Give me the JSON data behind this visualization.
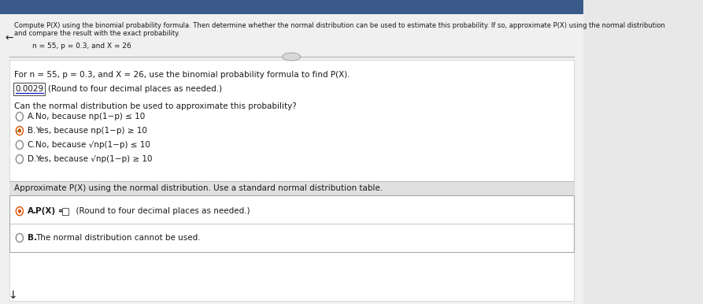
{
  "bg_color": "#e8e8e8",
  "header_bg": "#3a5a8a",
  "content_bg": "#f0f0f0",
  "white": "#ffffff",
  "title_line1": "Compute P(X) using the binomial probability formula. Then determine whether the normal distribution can be used to estimate this probability. If so, approximate P(X) using the normal distribution",
  "title_line2": "and compare the result with the exact probability.",
  "params_line": "n = 55, p = 0.3, and X = 26",
  "question1": "For n = 55, p = 0.3, and X = 26, use the binomial probability formula to find P(X).",
  "answer_box_value": "0.0029",
  "answer_box_note": "(Round to four decimal places as needed.)",
  "question2": "Can the normal distribution be used to approximate this probability?",
  "options": [
    {
      "label": "A.",
      "text": "No, because np(1−p) ≤ 10",
      "selected": false
    },
    {
      "label": "B.",
      "text": "Yes, because np(1−p) ≥ 10",
      "selected": true
    },
    {
      "label": "C.",
      "text": "No, because √np(1−p) ≤ 10",
      "selected": false
    },
    {
      "label": "D.",
      "text": "Yes, because √np(1−p) ≥ 10",
      "selected": false
    }
  ],
  "question3": "Approximate P(X) using the normal distribution. Use a standard normal distribution table.",
  "final_options": [
    {
      "label": "A.",
      "text": "P(X) =    (Round to four decimal places as needed.)",
      "selected": true
    },
    {
      "label": "B.",
      "text": "The normal distribution cannot be used.",
      "selected": false
    }
  ],
  "text_color": "#1a1a1a",
  "box_border_color": "#000000",
  "underline_color": "#0000cc",
  "radio_selected_color": "#e05000",
  "radio_check_color": "#5a8a00",
  "divider_color": "#aaaaaa",
  "fontsize_main": 7.5,
  "fontsize_small": 7.2
}
